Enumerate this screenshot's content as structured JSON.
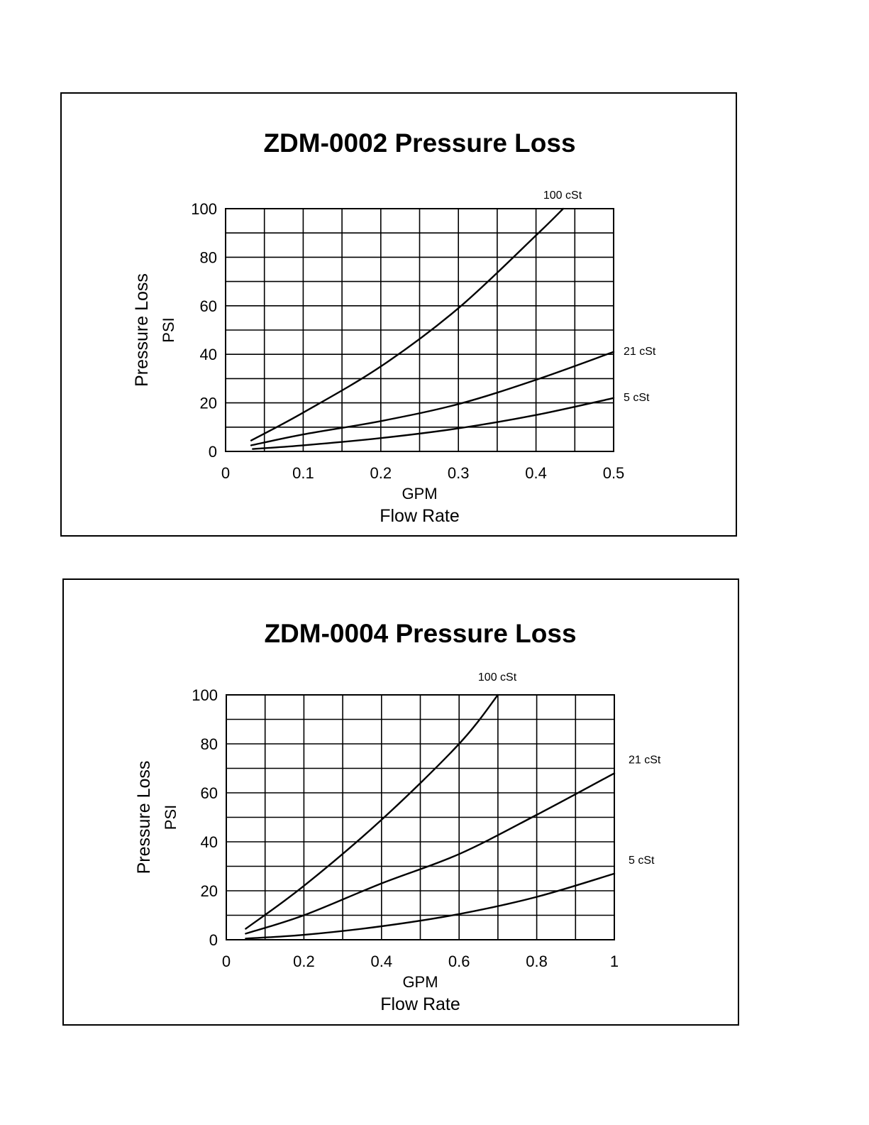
{
  "chart_data": [
    {
      "type": "line",
      "title": "ZDM-0002 Pressure Loss",
      "ylabel": "Pressure Loss",
      "ylabel_unit": "PSI",
      "xlabel_unit": "GPM",
      "xlabel": "Flow Rate",
      "xlim": [
        0,
        0.5
      ],
      "ylim": [
        0,
        100
      ],
      "x_ticks": [
        "0",
        "0.1",
        "0.2",
        "0.3",
        "0.4",
        "0.5"
      ],
      "y_ticks": [
        "0",
        "20",
        "40",
        "60",
        "80",
        "100"
      ],
      "grid": true,
      "x_minor_divisions": 10,
      "y_minor_divisions": 10,
      "series": [
        {
          "name": "100 cSt",
          "label_position": "top",
          "x": [
            0.033,
            0.1,
            0.2,
            0.3,
            0.4,
            0.435
          ],
          "values": [
            4.5,
            16,
            35,
            59,
            89,
            100
          ]
        },
        {
          "name": "21 cSt",
          "label_position": "right",
          "x": [
            0.033,
            0.1,
            0.2,
            0.3,
            0.4,
            0.5
          ],
          "values": [
            2.5,
            7,
            12.5,
            19.5,
            29.5,
            41
          ]
        },
        {
          "name": "5 cSt",
          "label_position": "right",
          "x": [
            0.035,
            0.1,
            0.2,
            0.3,
            0.4,
            0.5
          ],
          "values": [
            1,
            2.5,
            5.5,
            9.5,
            15,
            22
          ]
        }
      ]
    },
    {
      "type": "line",
      "title": "ZDM-0004 Pressure Loss",
      "ylabel": "Pressure Loss",
      "ylabel_unit": "PSI",
      "xlabel_unit": "GPM",
      "xlabel": "Flow Rate",
      "xlim": [
        0,
        1
      ],
      "ylim": [
        0,
        100
      ],
      "x_ticks": [
        "0",
        "0.2",
        "0.4",
        "0.6",
        "0.8",
        "1"
      ],
      "y_ticks": [
        "0",
        "20",
        "40",
        "60",
        "80",
        "100"
      ],
      "grid": true,
      "x_minor_divisions": 10,
      "y_minor_divisions": 10,
      "series": [
        {
          "name": "100 cSt",
          "label_position": "top",
          "x": [
            0.05,
            0.2,
            0.4,
            0.6,
            0.7
          ],
          "values": [
            4.5,
            22,
            49,
            80,
            100
          ]
        },
        {
          "name": "21 cSt",
          "label_position": "right",
          "x": [
            0.05,
            0.2,
            0.4,
            0.6,
            0.8,
            1.0
          ],
          "values": [
            2.5,
            10,
            23,
            35,
            51,
            68
          ]
        },
        {
          "name": "5 cSt",
          "label_position": "right",
          "x": [
            0.05,
            0.2,
            0.4,
            0.6,
            0.8,
            1.0
          ],
          "values": [
            0.5,
            2,
            5.5,
            10.5,
            17.5,
            27
          ]
        }
      ]
    }
  ]
}
